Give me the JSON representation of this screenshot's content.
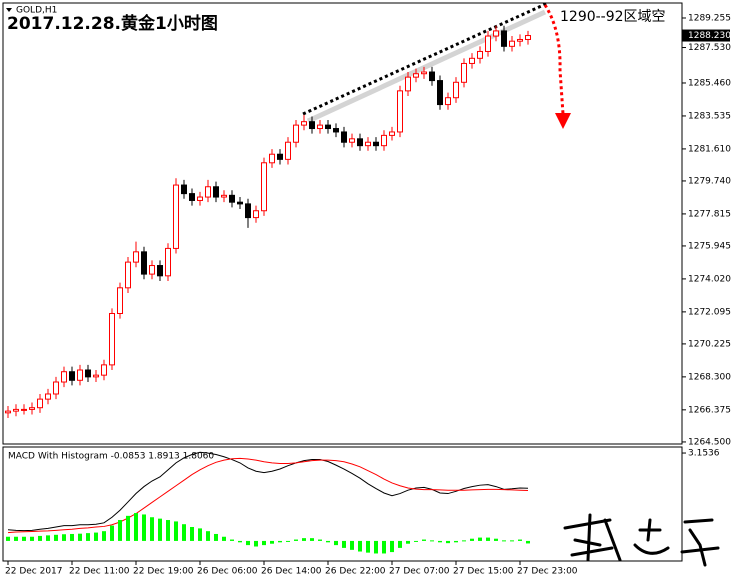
{
  "chart_data": [
    {
      "type": "candlestick",
      "title": "2017.12.28.黄金1小时图",
      "subtitle": "GOLD,H1",
      "annotation": "1290--92区域空",
      "ylim": [
        1264.38,
        1290.13
      ],
      "yticks": [
        1289.255,
        {
          "value": 1287.53,
          "label": "1287.530"
        },
        {
          "value": 1285.46,
          "label": "1285.460"
        },
        1283.535,
        {
          "value": 1281.61,
          "label": "1281.610"
        },
        {
          "value": 1279.74,
          "label": "1279.740"
        },
        1277.815,
        1275.945,
        {
          "value": 1274.02,
          "label": "1274.020"
        },
        1272.095,
        1270.225,
        {
          "value": 1268.3,
          "label": "1268.300"
        },
        1266.375,
        {
          "value": 1264.5,
          "label": "1264.500"
        }
      ],
      "current_price": {
        "value": 1288.23,
        "label": "1288.230"
      },
      "xticks": [
        {
          "value": 0,
          "label": "22 Dec 2017"
        },
        {
          "value": 8,
          "label": "22 Dec 11:00"
        },
        {
          "value": 16,
          "label": "22 Dec 19:00"
        },
        {
          "value": 24,
          "label": "26 Dec 06:00"
        },
        {
          "value": 32,
          "label": "26 Dec 14:00"
        },
        {
          "value": 40,
          "label": "26 Dec 22:00"
        },
        {
          "value": 48,
          "label": "27 Dec 07:00"
        },
        {
          "value": 56,
          "label": "27 Dec 15:00"
        },
        {
          "value": 64,
          "label": "27 Dec 23:00"
        }
      ],
      "up_color": "#ff0000",
      "down_color": "#000000",
      "open": [
        1266.2,
        1266.3,
        1266.4,
        1266.4,
        1266.5,
        1267.0,
        1267.3,
        1268.0,
        1268.6,
        1268.1,
        1268.7,
        1268.3,
        1268.4,
        1269.0,
        1272.0,
        1273.5,
        1275.0,
        1275.6,
        1274.3,
        1274.8,
        1274.2,
        1275.8,
        1279.5,
        1279.0,
        1278.6,
        1278.8,
        1279.4,
        1278.8,
        1278.9,
        1278.5,
        1278.4,
        1277.6,
        1278.0,
        1280.8,
        1281.3,
        1281.0,
        1282.0,
        1283.0,
        1283.2,
        1282.8,
        1283.0,
        1282.8,
        1282.6,
        1282.0,
        1282.2,
        1281.8,
        1282.0,
        1281.8,
        1282.4,
        1282.6,
        1285.0,
        1285.8,
        1286.0,
        1286.1,
        1285.6,
        1284.2,
        1284.6,
        1285.5,
        1286.6,
        1286.9,
        1287.3,
        1288.2,
        1288.5,
        1287.6,
        1287.9,
        1288.0
      ],
      "high": [
        1266.6,
        1266.7,
        1266.7,
        1266.8,
        1267.3,
        1267.6,
        1268.3,
        1268.9,
        1268.9,
        1269.0,
        1269.0,
        1268.7,
        1269.3,
        1272.3,
        1273.8,
        1275.3,
        1276.2,
        1275.9,
        1275.1,
        1275.1,
        1276.1,
        1279.9,
        1279.8,
        1279.3,
        1279.1,
        1279.8,
        1279.7,
        1279.2,
        1279.2,
        1278.8,
        1278.7,
        1278.3,
        1281.1,
        1281.6,
        1281.6,
        1282.3,
        1283.3,
        1283.6,
        1283.5,
        1283.3,
        1283.3,
        1283.1,
        1282.9,
        1282.5,
        1282.5,
        1282.3,
        1282.3,
        1282.7,
        1282.9,
        1285.3,
        1286.1,
        1286.3,
        1286.4,
        1286.4,
        1285.9,
        1284.9,
        1285.8,
        1286.9,
        1287.2,
        1287.6,
        1288.5,
        1288.8,
        1288.8,
        1288.2,
        1288.3,
        1288.5
      ],
      "low": [
        1265.9,
        1266.0,
        1266.1,
        1266.1,
        1266.2,
        1266.7,
        1267.0,
        1267.7,
        1267.8,
        1267.8,
        1268.0,
        1268.0,
        1268.1,
        1268.7,
        1271.7,
        1273.2,
        1274.7,
        1274.0,
        1274.0,
        1273.9,
        1273.9,
        1275.5,
        1278.7,
        1278.3,
        1278.3,
        1278.5,
        1278.5,
        1278.5,
        1278.2,
        1278.1,
        1277.0,
        1277.3,
        1277.7,
        1280.5,
        1280.7,
        1280.7,
        1281.7,
        1282.7,
        1282.5,
        1282.5,
        1282.5,
        1282.3,
        1281.7,
        1281.7,
        1281.5,
        1281.5,
        1281.5,
        1281.5,
        1282.1,
        1282.3,
        1284.7,
        1285.5,
        1285.7,
        1285.3,
        1283.9,
        1283.9,
        1284.3,
        1285.2,
        1286.3,
        1286.6,
        1287.0,
        1287.9,
        1287.3,
        1287.3,
        1287.6,
        1287.7
      ],
      "close": [
        1266.3,
        1266.4,
        1266.4,
        1266.5,
        1267.0,
        1267.3,
        1268.0,
        1268.6,
        1268.1,
        1268.7,
        1268.3,
        1268.4,
        1269.0,
        1272.0,
        1273.5,
        1275.0,
        1275.6,
        1274.3,
        1274.8,
        1274.2,
        1275.8,
        1279.5,
        1279.0,
        1278.6,
        1278.8,
        1279.4,
        1278.8,
        1278.9,
        1278.5,
        1278.4,
        1277.6,
        1278.0,
        1280.8,
        1281.3,
        1281.0,
        1282.0,
        1283.0,
        1283.2,
        1282.8,
        1283.0,
        1282.8,
        1282.6,
        1282.0,
        1282.2,
        1281.8,
        1282.0,
        1281.8,
        1282.4,
        1282.6,
        1285.0,
        1285.8,
        1286.0,
        1286.1,
        1285.6,
        1284.2,
        1284.6,
        1285.5,
        1286.6,
        1286.9,
        1287.3,
        1288.2,
        1288.5,
        1287.6,
        1287.9,
        1288.0,
        1288.23
      ]
    },
    {
      "type": "macd",
      "title": "MACD With Histogram -0.0853 1.8913 1.8060",
      "ylim": [
        -0.72,
        3.37
      ],
      "yticks": [
        3.1536
      ],
      "series": [
        {
          "type": "line",
          "color": "#000000",
          "values": [
            0.4,
            0.38,
            0.37,
            0.38,
            0.42,
            0.45,
            0.5,
            0.55,
            0.55,
            0.58,
            0.58,
            0.6,
            0.65,
            0.85,
            1.1,
            1.4,
            1.7,
            1.95,
            2.15,
            2.3,
            2.55,
            2.8,
            2.98,
            3.1,
            3.18,
            3.15,
            3.1,
            3.02,
            2.92,
            2.8,
            2.62,
            2.5,
            2.45,
            2.5,
            2.58,
            2.7,
            2.8,
            2.88,
            2.92,
            2.92,
            2.85,
            2.72,
            2.58,
            2.42,
            2.25,
            2.05,
            1.88,
            1.72,
            1.62,
            1.7,
            1.82,
            1.9,
            1.92,
            1.85,
            1.72,
            1.7,
            1.78,
            1.88,
            1.95,
            2.0,
            2.02,
            1.95,
            1.85,
            1.87,
            1.9,
            1.89
          ]
        },
        {
          "type": "line",
          "color": "#ff0000",
          "values": [
            0.3,
            0.32,
            0.33,
            0.34,
            0.35,
            0.36,
            0.38,
            0.4,
            0.42,
            0.45,
            0.47,
            0.5,
            0.52,
            0.58,
            0.68,
            0.82,
            0.98,
            1.18,
            1.38,
            1.58,
            1.78,
            1.98,
            2.18,
            2.38,
            2.55,
            2.7,
            2.82,
            2.9,
            2.95,
            2.96,
            2.94,
            2.9,
            2.84,
            2.8,
            2.78,
            2.78,
            2.8,
            2.84,
            2.88,
            2.9,
            2.9,
            2.88,
            2.84,
            2.76,
            2.66,
            2.52,
            2.38,
            2.22,
            2.08,
            1.98,
            1.9,
            1.86,
            1.84,
            1.84,
            1.83,
            1.82,
            1.82,
            1.82,
            1.83,
            1.84,
            1.85,
            1.85,
            1.84,
            1.83,
            1.82,
            1.81
          ]
        },
        {
          "type": "bar",
          "color": "#00ff00",
          "values": [
            0.15,
            0.15,
            0.15,
            0.15,
            0.18,
            0.2,
            0.22,
            0.24,
            0.25,
            0.26,
            0.28,
            0.3,
            0.35,
            0.55,
            0.75,
            0.9,
            1.0,
            0.95,
            0.85,
            0.8,
            0.75,
            0.7,
            0.6,
            0.5,
            0.45,
            0.35,
            0.25,
            0.15,
            0.05,
            -0.05,
            -0.15,
            -0.2,
            -0.15,
            -0.1,
            -0.05,
            0.0,
            0.05,
            0.1,
            0.1,
            0.05,
            -0.05,
            -0.15,
            -0.25,
            -0.32,
            -0.38,
            -0.42,
            -0.45,
            -0.45,
            -0.4,
            -0.25,
            -0.1,
            0.0,
            0.05,
            0.02,
            -0.05,
            -0.08,
            -0.05,
            0.02,
            0.08,
            0.12,
            0.12,
            0.08,
            0.02,
            0.02,
            0.05,
            -0.09
          ]
        }
      ]
    }
  ]
}
